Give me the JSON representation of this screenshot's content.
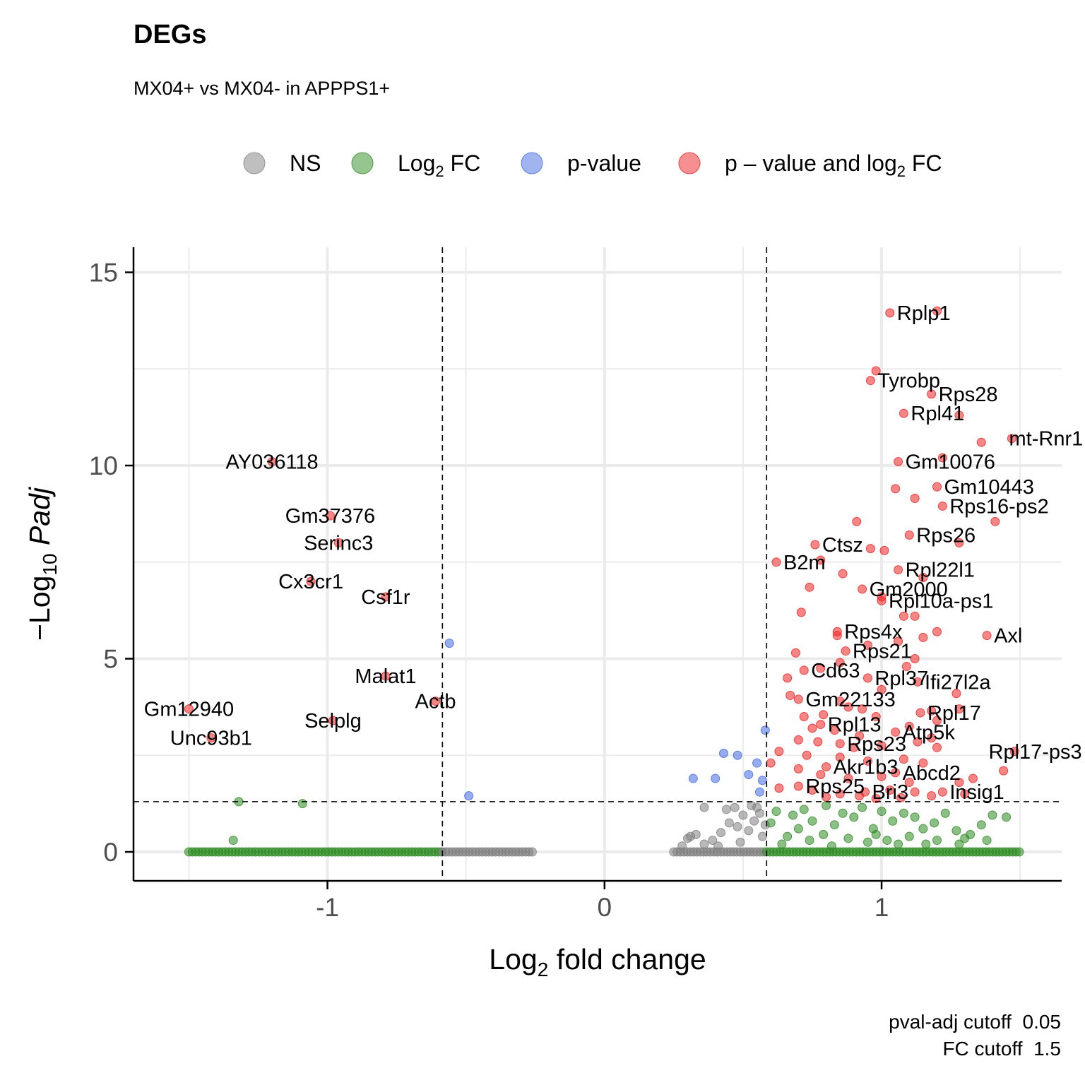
{
  "title": "DEGs",
  "subtitle": "MX04+ vs MX04- in APPPS1+",
  "caption": [
    "pval-adj cutoff  0.05",
    "FC cutoff  1.5"
  ],
  "colors": {
    "NS": "#808080",
    "Log2 FC": "#2e8b22",
    "p-value": "#4169e1",
    "p - value and log2 FC": "#ee2222",
    "grid": "#ebebeb"
  },
  "chart_data": {
    "type": "scatter",
    "title": "DEGs",
    "subtitle": "MX04+ vs MX04- in APPPS1+",
    "xlabel": {
      "main": "Log",
      "sub": "2",
      "rest": " fold change"
    },
    "ylabel": {
      "prefix": "−Log",
      "sub": "10",
      "italic": " Padj"
    },
    "xlim": [
      -1.7,
      1.65
    ],
    "ylim": [
      -0.75,
      15.65
    ],
    "x_ticks": [
      -1,
      0,
      1
    ],
    "x_tick_labels": [
      "-1",
      "0",
      "1"
    ],
    "y_ticks": [
      0,
      5,
      10,
      15
    ],
    "y_tick_labels": [
      "0",
      "5",
      "10",
      "15"
    ],
    "grid": true,
    "legend_position": "top",
    "legend": [
      {
        "label": "NS",
        "color": "#808080"
      },
      {
        "label": "Log2 FC",
        "color": "#2e8b22"
      },
      {
        "label": "p-value",
        "color": "#4169e1"
      },
      {
        "label": "p – value and log2 FC",
        "color": "#ee2222"
      }
    ],
    "cutoff_lines": {
      "x": [
        -0.585,
        0.585
      ],
      "y": 1.3
    },
    "labeled_points": [
      {
        "gene": "Rplp1",
        "x": 1.03,
        "y": 13.95
      },
      {
        "gene": "Tyrobp",
        "x": 0.96,
        "y": 12.2
      },
      {
        "gene": "Rps28",
        "x": 1.18,
        "y": 11.85
      },
      {
        "gene": "Rpl41",
        "x": 1.08,
        "y": 11.35
      },
      {
        "gene": "mt-Rnr1",
        "x": 1.47,
        "y": 10.7
      },
      {
        "gene": "Gm10076",
        "x": 1.06,
        "y": 10.1
      },
      {
        "gene": "Gm10443",
        "x": 1.2,
        "y": 9.45
      },
      {
        "gene": "Rps16-ps2",
        "x": 1.22,
        "y": 8.95
      },
      {
        "gene": "Rps26",
        "x": 1.1,
        "y": 8.2
      },
      {
        "gene": "Ctsz",
        "x": 0.76,
        "y": 7.95
      },
      {
        "gene": "B2m",
        "x": 0.62,
        "y": 7.5
      },
      {
        "gene": "Rpl22l1",
        "x": 1.06,
        "y": 7.3
      },
      {
        "gene": "Gm2000",
        "x": 0.93,
        "y": 6.8
      },
      {
        "gene": "Rpl10a-ps1",
        "x": 1.0,
        "y": 6.5
      },
      {
        "gene": "Rps4x",
        "x": 0.84,
        "y": 5.7
      },
      {
        "gene": "Axl",
        "x": 1.38,
        "y": 5.6
      },
      {
        "gene": "Rps21",
        "x": 0.87,
        "y": 5.2
      },
      {
        "gene": "Cd63",
        "x": 0.72,
        "y": 4.7
      },
      {
        "gene": "Rpl37",
        "x": 0.95,
        "y": 4.5
      },
      {
        "gene": "Ifi27l2a",
        "x": 1.13,
        "y": 4.4
      },
      {
        "gene": "Gm22133",
        "x": 0.7,
        "y": 3.95
      },
      {
        "gene": "Rpl17",
        "x": 1.14,
        "y": 3.6
      },
      {
        "gene": "Rpl13",
        "x": 0.78,
        "y": 3.3
      },
      {
        "gene": "Atp5k",
        "x": 1.05,
        "y": 3.1
      },
      {
        "gene": "Rps23",
        "x": 0.85,
        "y": 2.8
      },
      {
        "gene": "Rpl17-ps3",
        "x": 1.48,
        "y": 2.6
      },
      {
        "gene": "Akr1b3",
        "x": 0.8,
        "y": 2.2
      },
      {
        "gene": "Abcd2",
        "x": 1.05,
        "y": 2.05
      },
      {
        "gene": "Rps25",
        "x": 0.7,
        "y": 1.7
      },
      {
        "gene": "Bri3",
        "x": 0.94,
        "y": 1.55
      },
      {
        "gene": "Insig1",
        "x": 1.22,
        "y": 1.55
      },
      {
        "gene": "AY036118",
        "x": -1.2,
        "y": 10.1
      },
      {
        "gene": "Gm37376",
        "x": -0.99,
        "y": 8.7
      },
      {
        "gene": "Serinc3",
        "x": -0.96,
        "y": 8.0
      },
      {
        "gene": "Cx3cr1",
        "x": -1.06,
        "y": 7.0
      },
      {
        "gene": "Csf1r",
        "x": -0.79,
        "y": 6.6
      },
      {
        "gene": "Malat1",
        "x": -0.79,
        "y": 4.55
      },
      {
        "gene": "Actb",
        "x": -0.61,
        "y": 3.9
      },
      {
        "gene": "Gm12940",
        "x": -1.5,
        "y": 3.7
      },
      {
        "gene": "Selplg",
        "x": -0.98,
        "y": 3.4
      },
      {
        "gene": "Unc93b1",
        "x": -1.42,
        "y": 2.95
      }
    ],
    "pvalue_only_points": [
      {
        "x": -0.56,
        "y": 5.4
      },
      {
        "x": -0.49,
        "y": 1.45
      },
      {
        "x": 0.58,
        "y": 3.15
      },
      {
        "x": 0.43,
        "y": 2.55
      },
      {
        "x": 0.48,
        "y": 2.5
      },
      {
        "x": 0.55,
        "y": 2.3
      },
      {
        "x": 0.32,
        "y": 1.9
      },
      {
        "x": 0.4,
        "y": 1.9
      },
      {
        "x": 0.52,
        "y": 2.0
      },
      {
        "x": 0.56,
        "y": 1.55
      },
      {
        "x": 0.57,
        "y": 1.85
      }
    ],
    "extra_sig_points": [
      {
        "x": 1.2,
        "y": 14.0
      },
      {
        "x": 0.98,
        "y": 12.45
      },
      {
        "x": 1.28,
        "y": 11.3
      },
      {
        "x": 1.36,
        "y": 10.6
      },
      {
        "x": 1.05,
        "y": 9.4
      },
      {
        "x": 1.22,
        "y": 10.2
      },
      {
        "x": 1.12,
        "y": 9.15
      },
      {
        "x": 0.91,
        "y": 8.55
      },
      {
        "x": 1.41,
        "y": 8.55
      },
      {
        "x": 0.96,
        "y": 7.85
      },
      {
        "x": 1.01,
        "y": 7.8
      },
      {
        "x": 1.28,
        "y": 8.0
      },
      {
        "x": 0.78,
        "y": 7.55
      },
      {
        "x": 0.86,
        "y": 7.2
      },
      {
        "x": 1.15,
        "y": 7.1
      },
      {
        "x": 0.74,
        "y": 6.85
      },
      {
        "x": 1.0,
        "y": 6.6
      },
      {
        "x": 0.71,
        "y": 6.2
      },
      {
        "x": 1.08,
        "y": 6.1
      },
      {
        "x": 1.12,
        "y": 6.1
      },
      {
        "x": 0.84,
        "y": 5.6
      },
      {
        "x": 1.15,
        "y": 5.55
      },
      {
        "x": 1.2,
        "y": 5.7
      },
      {
        "x": 0.95,
        "y": 5.35
      },
      {
        "x": 1.06,
        "y": 5.45
      },
      {
        "x": 0.69,
        "y": 5.15
      },
      {
        "x": 1.12,
        "y": 5.0
      },
      {
        "x": 0.85,
        "y": 4.9
      },
      {
        "x": 1.09,
        "y": 4.8
      },
      {
        "x": 0.78,
        "y": 4.75
      },
      {
        "x": 0.66,
        "y": 4.5
      },
      {
        "x": 1.0,
        "y": 4.2
      },
      {
        "x": 1.27,
        "y": 4.1
      },
      {
        "x": 0.67,
        "y": 4.05
      },
      {
        "x": 0.85,
        "y": 3.9
      },
      {
        "x": 0.88,
        "y": 3.75
      },
      {
        "x": 0.93,
        "y": 3.7
      },
      {
        "x": 1.18,
        "y": 3.65
      },
      {
        "x": 1.28,
        "y": 3.7
      },
      {
        "x": 0.72,
        "y": 3.5
      },
      {
        "x": 0.79,
        "y": 3.55
      },
      {
        "x": 0.98,
        "y": 3.5
      },
      {
        "x": 1.2,
        "y": 3.4
      },
      {
        "x": 0.75,
        "y": 3.2
      },
      {
        "x": 0.83,
        "y": 3.15
      },
      {
        "x": 0.92,
        "y": 3.0
      },
      {
        "x": 1.1,
        "y": 3.25
      },
      {
        "x": 1.18,
        "y": 2.95
      },
      {
        "x": 0.7,
        "y": 2.9
      },
      {
        "x": 0.77,
        "y": 2.85
      },
      {
        "x": 0.9,
        "y": 2.7
      },
      {
        "x": 1.0,
        "y": 2.75
      },
      {
        "x": 1.13,
        "y": 2.85
      },
      {
        "x": 1.2,
        "y": 2.7
      },
      {
        "x": 0.63,
        "y": 2.6
      },
      {
        "x": 0.73,
        "y": 2.5
      },
      {
        "x": 0.85,
        "y": 2.45
      },
      {
        "x": 0.95,
        "y": 2.35
      },
      {
        "x": 1.08,
        "y": 2.4
      },
      {
        "x": 1.15,
        "y": 2.3
      },
      {
        "x": 0.6,
        "y": 2.3
      },
      {
        "x": 0.7,
        "y": 2.15
      },
      {
        "x": 0.78,
        "y": 2.0
      },
      {
        "x": 0.88,
        "y": 1.9
      },
      {
        "x": 1.0,
        "y": 1.95
      },
      {
        "x": 1.1,
        "y": 1.8
      },
      {
        "x": 1.28,
        "y": 1.8
      },
      {
        "x": 1.33,
        "y": 1.9
      },
      {
        "x": 1.44,
        "y": 2.1
      },
      {
        "x": 0.63,
        "y": 1.65
      },
      {
        "x": 0.75,
        "y": 1.6
      },
      {
        "x": 0.85,
        "y": 1.5
      },
      {
        "x": 0.92,
        "y": 1.45
      },
      {
        "x": 1.03,
        "y": 1.6
      },
      {
        "x": 1.12,
        "y": 1.55
      },
      {
        "x": 1.18,
        "y": 1.45
      },
      {
        "x": 1.3,
        "y": 1.5
      },
      {
        "x": 0.8,
        "y": 1.42
      },
      {
        "x": 0.98,
        "y": 1.38
      },
      {
        "x": 1.07,
        "y": 1.4
      }
    ],
    "log2fc_only_points": [
      {
        "x": -1.32,
        "y": 1.3
      },
      {
        "x": -1.09,
        "y": 1.25
      },
      {
        "x": -1.34,
        "y": 0.3
      },
      {
        "x": 0.62,
        "y": 1.05
      },
      {
        "x": 0.68,
        "y": 0.95
      },
      {
        "x": 0.72,
        "y": 1.1
      },
      {
        "x": 0.75,
        "y": 0.8
      },
      {
        "x": 0.8,
        "y": 1.2
      },
      {
        "x": 0.83,
        "y": 0.7
      },
      {
        "x": 0.86,
        "y": 1.0
      },
      {
        "x": 0.9,
        "y": 0.9
      },
      {
        "x": 0.93,
        "y": 1.15
      },
      {
        "x": 0.97,
        "y": 0.6
      },
      {
        "x": 1.0,
        "y": 1.05
      },
      {
        "x": 1.04,
        "y": 0.8
      },
      {
        "x": 1.08,
        "y": 1.0
      },
      {
        "x": 1.12,
        "y": 0.9
      },
      {
        "x": 1.15,
        "y": 0.6
      },
      {
        "x": 1.19,
        "y": 0.75
      },
      {
        "x": 1.23,
        "y": 1.0
      },
      {
        "x": 1.27,
        "y": 0.55
      },
      {
        "x": 1.32,
        "y": 0.45
      },
      {
        "x": 1.36,
        "y": 0.7
      },
      {
        "x": 1.4,
        "y": 0.95
      },
      {
        "x": 1.45,
        "y": 0.9
      },
      {
        "x": 0.66,
        "y": 0.4
      },
      {
        "x": 0.74,
        "y": 0.3
      },
      {
        "x": 0.79,
        "y": 0.45
      },
      {
        "x": 0.88,
        "y": 0.35
      },
      {
        "x": 0.95,
        "y": 0.25
      },
      {
        "x": 1.02,
        "y": 0.3
      },
      {
        "x": 1.1,
        "y": 0.4
      },
      {
        "x": 1.2,
        "y": 0.3
      },
      {
        "x": 1.28,
        "y": 0.2
      },
      {
        "x": 1.38,
        "y": 0.3
      },
      {
        "x": 0.6,
        "y": 0.75
      },
      {
        "x": 0.64,
        "y": 0.2
      },
      {
        "x": 0.7,
        "y": 0.6
      },
      {
        "x": 0.82,
        "y": 0.15
      },
      {
        "x": 0.98,
        "y": 0.45
      },
      {
        "x": 1.06,
        "y": 0.2
      },
      {
        "x": 1.16,
        "y": 0.2
      },
      {
        "x": 1.3,
        "y": 0.35
      }
    ],
    "ns_points": [
      {
        "x": 0.3,
        "y": 0.35
      },
      {
        "x": 0.33,
        "y": 0.45
      },
      {
        "x": 0.36,
        "y": 0.2
      },
      {
        "x": 0.39,
        "y": 0.3
      },
      {
        "x": 0.42,
        "y": 0.5
      },
      {
        "x": 0.45,
        "y": 0.75
      },
      {
        "x": 0.48,
        "y": 0.65
      },
      {
        "x": 0.5,
        "y": 0.95
      },
      {
        "x": 0.52,
        "y": 0.55
      },
      {
        "x": 0.54,
        "y": 0.8
      },
      {
        "x": 0.56,
        "y": 1.0
      },
      {
        "x": 0.57,
        "y": 0.4
      },
      {
        "x": 0.36,
        "y": 1.15
      },
      {
        "x": 0.44,
        "y": 1.1
      },
      {
        "x": 0.47,
        "y": 1.15
      },
      {
        "x": 0.53,
        "y": 1.2
      },
      {
        "x": 0.55,
        "y": 1.15
      },
      {
        "x": 0.28,
        "y": 0.15
      },
      {
        "x": 0.31,
        "y": 0.4
      },
      {
        "x": 0.41,
        "y": 0.15
      },
      {
        "x": 0.49,
        "y": 0.25
      },
      {
        "x": 0.58,
        "y": 0.7
      }
    ],
    "zero_bands": [
      {
        "category": "Log2 FC",
        "x_range": [
          -1.5,
          -0.585
        ]
      },
      {
        "category": "NS",
        "x_range": [
          -0.585,
          -0.25
        ]
      },
      {
        "category": "NS",
        "x_range": [
          0.25,
          0.585
        ]
      },
      {
        "category": "Log2 FC",
        "x_range": [
          0.585,
          1.5
        ]
      }
    ]
  }
}
